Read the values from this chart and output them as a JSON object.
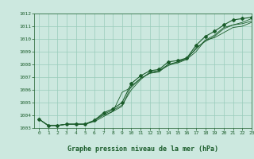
{
  "title": "Graphe pression niveau de la mer (hPa)",
  "background_color": "#cce8df",
  "grid_color": "#99ccbb",
  "line_color": "#1a5c2a",
  "xlim": [
    -0.5,
    23
  ],
  "ylim": [
    1003,
    1012
  ],
  "xticks": [
    0,
    1,
    2,
    3,
    4,
    5,
    6,
    7,
    8,
    9,
    10,
    11,
    12,
    13,
    14,
    15,
    16,
    17,
    18,
    19,
    20,
    21,
    22,
    23
  ],
  "yticks": [
    1003,
    1004,
    1005,
    1006,
    1007,
    1008,
    1009,
    1010,
    1011,
    1012
  ],
  "series": [
    [
      1003.7,
      1003.2,
      1003.2,
      1003.3,
      1003.3,
      1003.3,
      1003.6,
      1004.2,
      1004.5,
      1005.0,
      1006.5,
      1007.1,
      1007.5,
      1007.6,
      1008.2,
      1008.3,
      1008.5,
      1009.5,
      1010.2,
      1010.6,
      1011.1,
      1011.5,
      1011.6,
      1011.7
    ],
    [
      1003.7,
      1003.2,
      1003.2,
      1003.3,
      1003.3,
      1003.3,
      1003.5,
      1003.9,
      1004.3,
      1005.8,
      1006.2,
      1006.9,
      1007.3,
      1007.4,
      1008.0,
      1008.1,
      1008.4,
      1009.3,
      1009.8,
      1010.2,
      1010.8,
      1011.1,
      1011.2,
      1011.4
    ],
    [
      1003.7,
      1003.2,
      1003.2,
      1003.3,
      1003.3,
      1003.3,
      1003.6,
      1004.0,
      1004.3,
      1004.7,
      1006.3,
      1006.9,
      1007.3,
      1007.5,
      1007.9,
      1008.2,
      1008.4,
      1009.0,
      1009.9,
      1010.1,
      1010.5,
      1010.9,
      1011.0,
      1011.3
    ],
    [
      1003.7,
      1003.2,
      1003.2,
      1003.3,
      1003.3,
      1003.3,
      1003.6,
      1004.1,
      1004.4,
      1004.8,
      1006.0,
      1006.8,
      1007.4,
      1007.5,
      1008.0,
      1008.2,
      1008.5,
      1009.2,
      1009.9,
      1010.3,
      1010.9,
      1011.1,
      1011.3,
      1011.6
    ]
  ]
}
